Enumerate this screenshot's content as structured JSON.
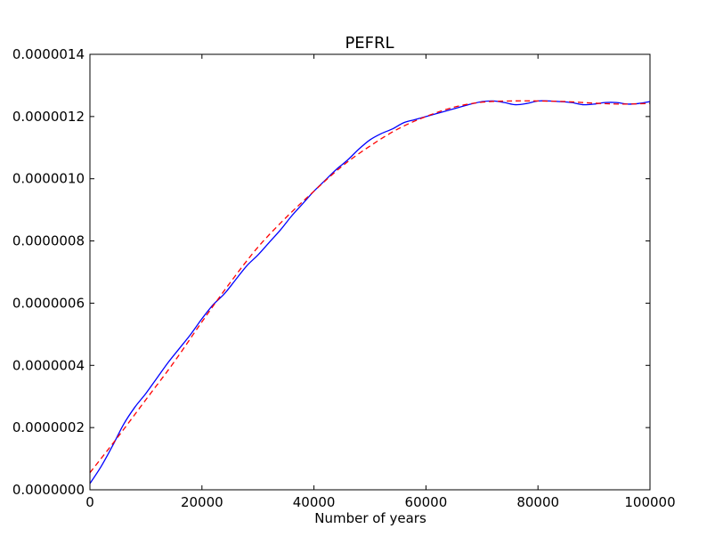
{
  "chart_data": {
    "type": "line",
    "title": "PEFRL",
    "xlabel": "Number of years",
    "ylabel": "",
    "xlim": [
      0,
      100000
    ],
    "ylim": [
      0,
      1.4e-06
    ],
    "grid": false,
    "x_ticks": [
      0,
      20000,
      40000,
      60000,
      80000,
      100000
    ],
    "x_tick_labels": [
      "0",
      "20000",
      "40000",
      "60000",
      "80000",
      "100000"
    ],
    "y_ticks": [
      0,
      2e-07,
      4e-07,
      6e-07,
      8e-07,
      1e-06,
      1.2e-06,
      1.4e-06
    ],
    "y_tick_labels": [
      "0.0000000",
      "0.0000002",
      "0.0000004",
      "0.0000006",
      "0.0000008",
      "0.0000010",
      "0.0000012",
      "0.0000014"
    ],
    "series": [
      {
        "style": "solid",
        "color": "#0000ff",
        "x": [
          0,
          2000,
          4000,
          6000,
          8000,
          10000,
          12000,
          14000,
          16000,
          18000,
          20000,
          22000,
          24000,
          26000,
          28000,
          30000,
          32000,
          34000,
          36000,
          38000,
          40000,
          42000,
          44000,
          46000,
          48000,
          50000,
          52000,
          54000,
          56000,
          58000,
          60000,
          62000,
          64000,
          66000,
          68000,
          70000,
          72000,
          74000,
          76000,
          78000,
          80000,
          82000,
          84000,
          86000,
          88000,
          90000,
          92000,
          94000,
          96000,
          98000,
          100000
        ],
        "y": [
          2e-08,
          7.5e-08,
          1.4e-07,
          2.1e-07,
          2.65e-07,
          3.1e-07,
          3.6e-07,
          4.1e-07,
          4.55e-07,
          5e-07,
          5.5e-07,
          5.95e-07,
          6.3e-07,
          6.75e-07,
          7.2e-07,
          7.55e-07,
          7.95e-07,
          8.35e-07,
          8.8e-07,
          9.2e-07,
          9.6e-07,
          9.95e-07,
          1.03e-06,
          1.06e-06,
          1.095e-06,
          1.125e-06,
          1.145e-06,
          1.16e-06,
          1.18e-06,
          1.19e-06,
          1.2e-06,
          1.21e-06,
          1.22e-06,
          1.23e-06,
          1.24e-06,
          1.248e-06,
          1.25e-06,
          1.245e-06,
          1.238e-06,
          1.242e-06,
          1.25e-06,
          1.25e-06,
          1.248e-06,
          1.245e-06,
          1.238e-06,
          1.24e-06,
          1.245e-06,
          1.245e-06,
          1.24e-06,
          1.242e-06,
          1.248e-06
        ]
      },
      {
        "style": "dashed",
        "color": "#ff0000",
        "x": [
          0,
          5000,
          10000,
          15000,
          20000,
          25000,
          30000,
          35000,
          40000,
          45000,
          50000,
          55000,
          60000,
          65000,
          70000,
          75000,
          80000,
          85000,
          90000,
          95000,
          100000
        ],
        "y": [
          5.5e-08,
          1.7e-07,
          2.9e-07,
          4.1e-07,
          5.4e-07,
          6.65e-07,
          7.8e-07,
          8.75e-07,
          9.6e-07,
          1.04e-06,
          1.105e-06,
          1.16e-06,
          1.2e-06,
          1.23e-06,
          1.246e-06,
          1.25e-06,
          1.25e-06,
          1.248e-06,
          1.243e-06,
          1.24e-06,
          1.242e-06
        ]
      }
    ]
  }
}
